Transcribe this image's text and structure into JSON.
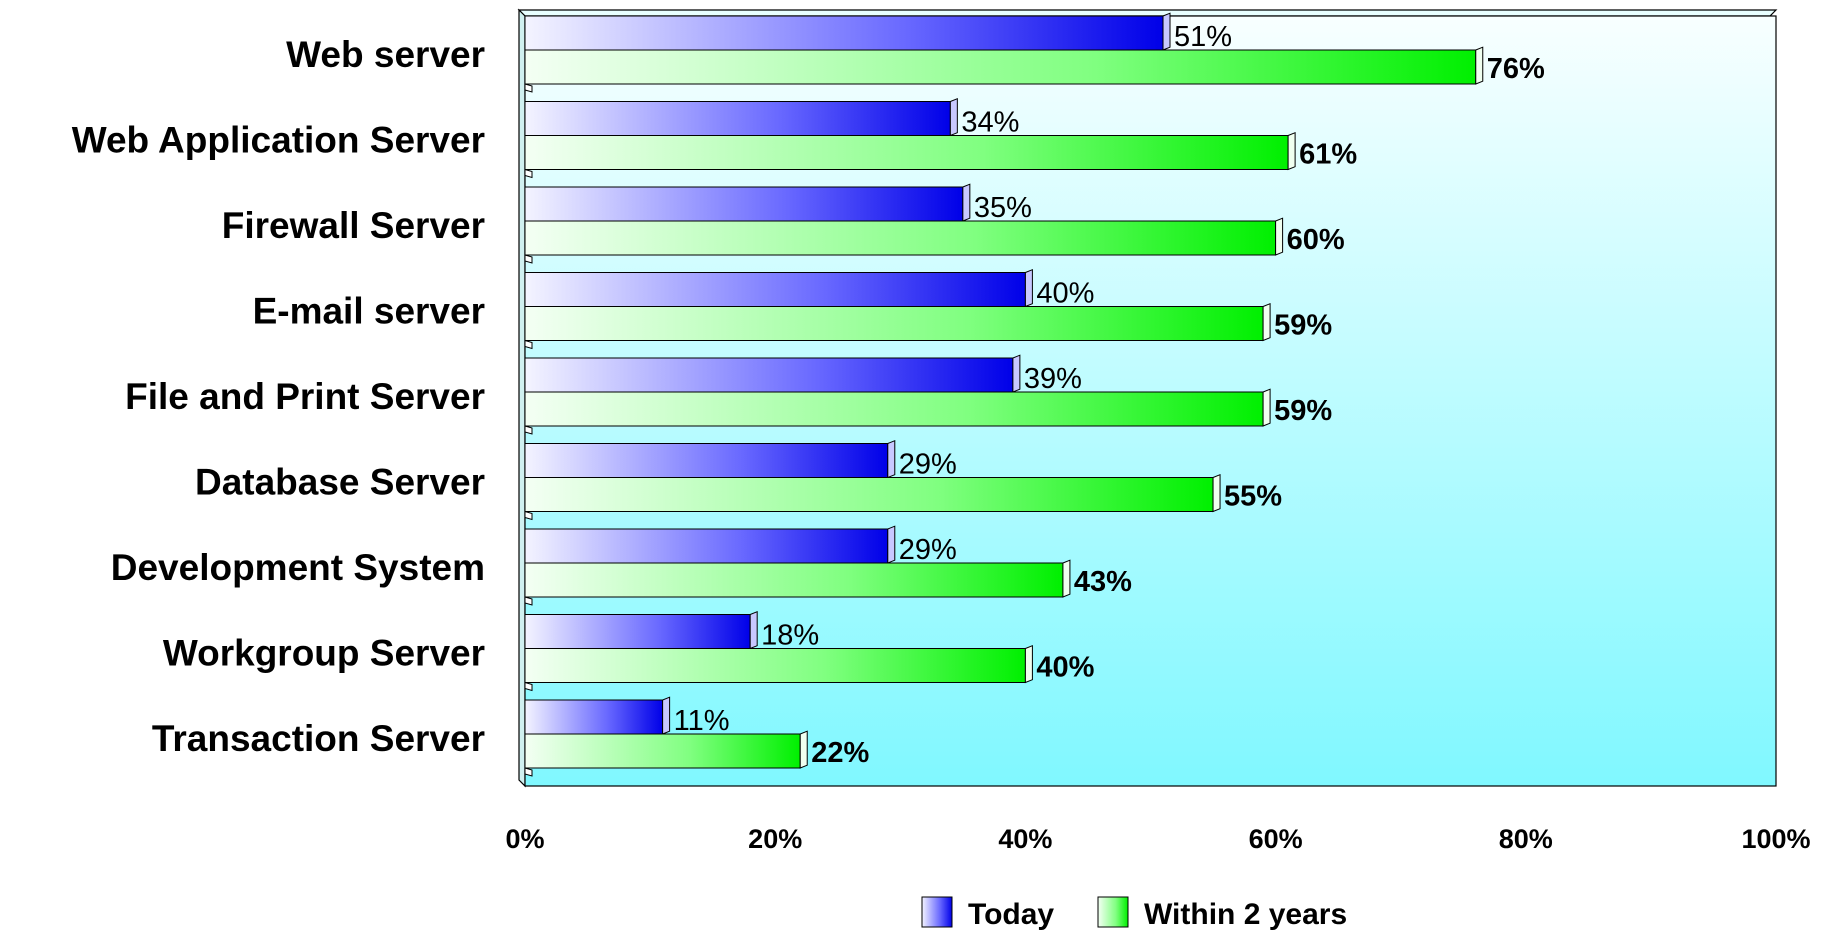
{
  "chart_data": {
    "type": "bar",
    "orientation": "horizontal",
    "categories": [
      "Web server",
      "Web Application Server",
      "Firewall Server",
      "E-mail server",
      "File and Print Server",
      "Database Server",
      "Development System",
      "Workgroup Server",
      "Transaction Server"
    ],
    "series": [
      {
        "name": "Today",
        "values": [
          51,
          34,
          35,
          40,
          39,
          29,
          29,
          18,
          11
        ],
        "color": "#0000ee"
      },
      {
        "name": "Within 2 years",
        "values": [
          76,
          61,
          60,
          59,
          59,
          55,
          43,
          40,
          22
        ],
        "color": "#00ee00"
      }
    ],
    "value_labels": {
      "Today": [
        "51%",
        "34%",
        "35%",
        "40%",
        "39%",
        "29%",
        "29%",
        "18%",
        "11%"
      ],
      "Within 2 years": [
        "76%",
        "61%",
        "60%",
        "59%",
        "59%",
        "55%",
        "43%",
        "40%",
        "22%"
      ]
    },
    "xlim": [
      0,
      100
    ],
    "x_ticks": [
      0,
      20,
      40,
      60,
      80,
      100
    ],
    "x_tick_labels": [
      "0%",
      "20%",
      "40%",
      "60%",
      "80%",
      "100%"
    ],
    "title": "",
    "xlabel": "",
    "ylabel": "",
    "grid": false,
    "legend_position": "bottom",
    "legend": [
      "Today",
      "Within 2 years"
    ],
    "plot_background": "#80f8ff"
  }
}
